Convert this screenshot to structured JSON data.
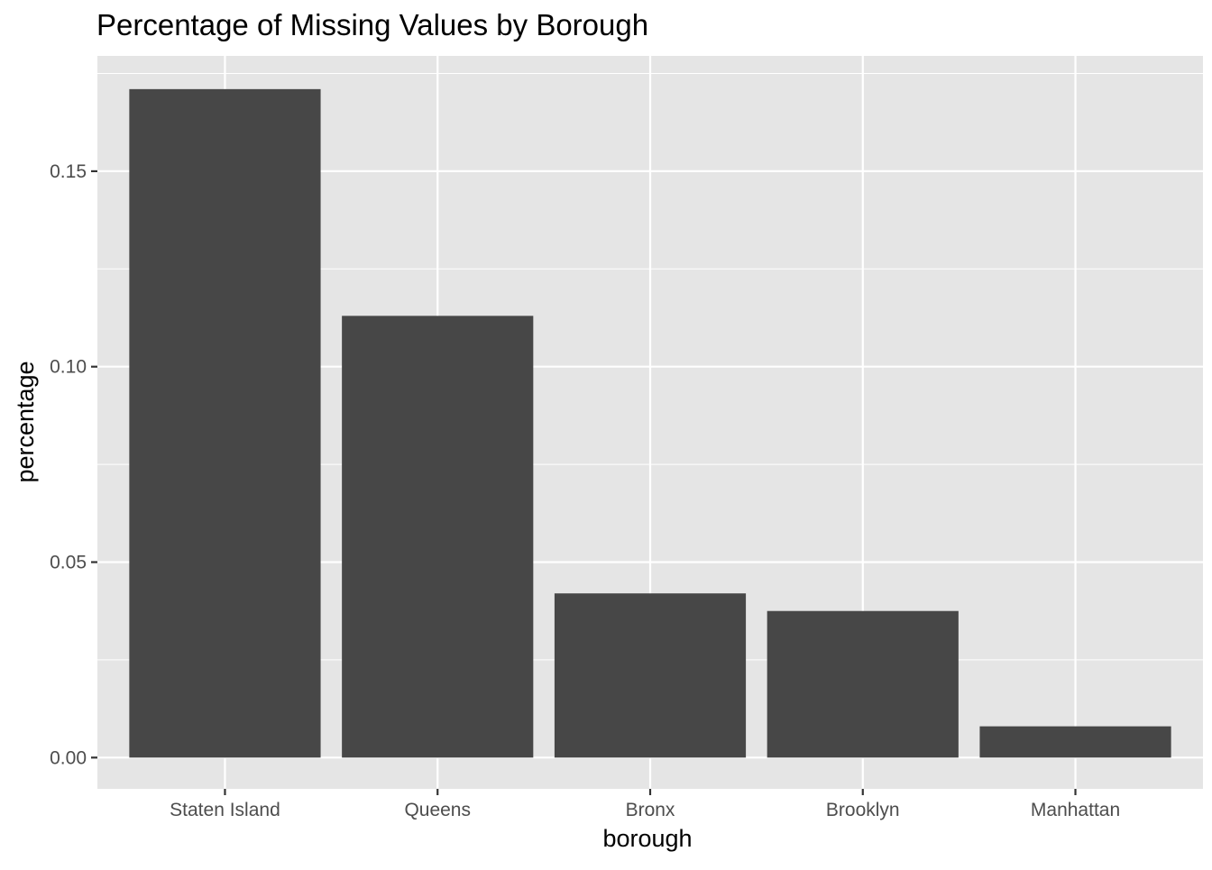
{
  "chart_data": {
    "type": "bar",
    "title": "Percentage of Missing Values by Borough",
    "xlabel": "borough",
    "ylabel": "percentage",
    "categories": [
      "Staten Island",
      "Queens",
      "Bronx",
      "Brooklyn",
      "Manhattan"
    ],
    "values": [
      0.171,
      0.113,
      0.042,
      0.0375,
      0.008
    ],
    "ylim": [
      -0.008,
      0.1795
    ],
    "yticks": [
      0.0,
      0.05,
      0.1,
      0.15
    ],
    "ytick_labels": [
      "0.00",
      "0.05",
      "0.10",
      "0.15"
    ],
    "grid": true,
    "legend": "none",
    "colors": {
      "bar": "#474747",
      "panel": "#e5e5e5",
      "grid": "#ffffff",
      "tick": "#333333"
    }
  }
}
